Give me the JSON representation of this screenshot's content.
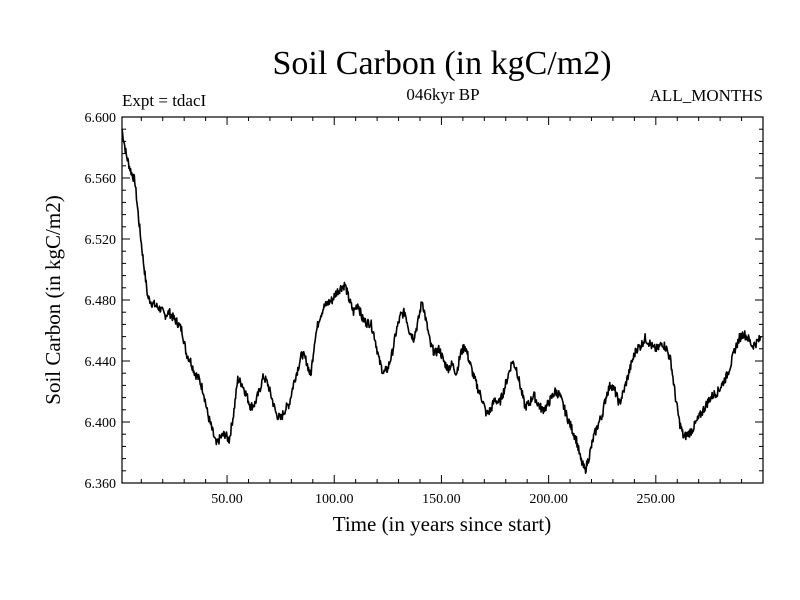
{
  "chart_data": {
    "type": "line",
    "title": "Soil Carbon (in kgC/m2)",
    "subtitle": "046kyr BP",
    "left_label": "Expt = tdacI",
    "right_label": "ALL_MONTHS",
    "xlabel": "Time (in years since start)",
    "ylabel": "Soil Carbon (in kgC/m2)",
    "xlim": [
      1,
      300
    ],
    "ylim": [
      6.36,
      6.6
    ],
    "xticks": [
      50,
      100,
      150,
      200,
      250
    ],
    "xtick_labels": [
      "50.00",
      "100.00",
      "150.00",
      "200.00",
      "250.00"
    ],
    "yticks": [
      6.36,
      6.4,
      6.44,
      6.48,
      6.52,
      6.56,
      6.6
    ],
    "ytick_labels": [
      "6.360",
      "6.400",
      "6.440",
      "6.480",
      "6.520",
      "6.560",
      "6.600"
    ],
    "series": [
      {
        "name": "Soil Carbon",
        "color": "#000000",
        "x": [
          1,
          3,
          5,
          7,
          9,
          11,
          13,
          15,
          17,
          19,
          21,
          23,
          25,
          27,
          29,
          31,
          33,
          35,
          37,
          39,
          41,
          43,
          45,
          47,
          49,
          51,
          53,
          55,
          57,
          59,
          61,
          63,
          65,
          67,
          69,
          71,
          73,
          75,
          77,
          79,
          81,
          83,
          85,
          87,
          89,
          91,
          93,
          95,
          97,
          99,
          101,
          103,
          105,
          107,
          109,
          111,
          113,
          115,
          117,
          119,
          121,
          123,
          125,
          127,
          129,
          131,
          133,
          135,
          137,
          139,
          141,
          143,
          145,
          147,
          149,
          151,
          153,
          155,
          157,
          159,
          161,
          163,
          165,
          167,
          169,
          171,
          173,
          175,
          177,
          179,
          181,
          183,
          185,
          187,
          189,
          191,
          193,
          195,
          197,
          199,
          201,
          203,
          205,
          207,
          209,
          211,
          213,
          215,
          217,
          219,
          221,
          223,
          225,
          227,
          229,
          231,
          233,
          235,
          237,
          239,
          241,
          243,
          245,
          247,
          249,
          251,
          253,
          255,
          257,
          259,
          261,
          263,
          265,
          267,
          269,
          271,
          273,
          275,
          277,
          279,
          281,
          283,
          285,
          287,
          289,
          291,
          293,
          295,
          297,
          299
        ],
        "values": [
          6.592,
          6.575,
          6.565,
          6.558,
          6.53,
          6.505,
          6.482,
          6.478,
          6.476,
          6.474,
          6.47,
          6.472,
          6.468,
          6.465,
          6.46,
          6.445,
          6.44,
          6.432,
          6.428,
          6.42,
          6.405,
          6.395,
          6.385,
          6.39,
          6.392,
          6.388,
          6.405,
          6.428,
          6.425,
          6.418,
          6.41,
          6.412,
          6.42,
          6.43,
          6.425,
          6.415,
          6.405,
          6.402,
          6.408,
          6.412,
          6.425,
          6.435,
          6.445,
          6.44,
          6.43,
          6.455,
          6.468,
          6.475,
          6.478,
          6.48,
          6.485,
          6.488,
          6.49,
          6.48,
          6.472,
          6.478,
          6.468,
          6.465,
          6.465,
          6.455,
          6.44,
          6.432,
          6.435,
          6.445,
          6.46,
          6.47,
          6.472,
          6.46,
          6.455,
          6.465,
          6.48,
          6.465,
          6.45,
          6.445,
          6.448,
          6.44,
          6.435,
          6.438,
          6.432,
          6.445,
          6.45,
          6.44,
          6.43,
          6.422,
          6.415,
          6.405,
          6.408,
          6.415,
          6.412,
          6.42,
          6.43,
          6.44,
          6.435,
          6.422,
          6.41,
          6.412,
          6.418,
          6.412,
          6.408,
          6.41,
          6.415,
          6.42,
          6.418,
          6.41,
          6.402,
          6.395,
          6.388,
          6.375,
          6.368,
          6.378,
          6.39,
          6.398,
          6.405,
          6.418,
          6.425,
          6.42,
          6.412,
          6.42,
          6.43,
          6.44,
          6.448,
          6.45,
          6.455,
          6.452,
          6.448,
          6.448,
          6.452,
          6.448,
          6.44,
          6.418,
          6.4,
          6.39,
          6.392,
          6.395,
          6.4,
          6.405,
          6.41,
          6.415,
          6.418,
          6.42,
          6.425,
          6.43,
          6.438,
          6.448,
          6.455,
          6.458,
          6.455,
          6.45,
          6.452,
          6.455
        ]
      }
    ]
  }
}
